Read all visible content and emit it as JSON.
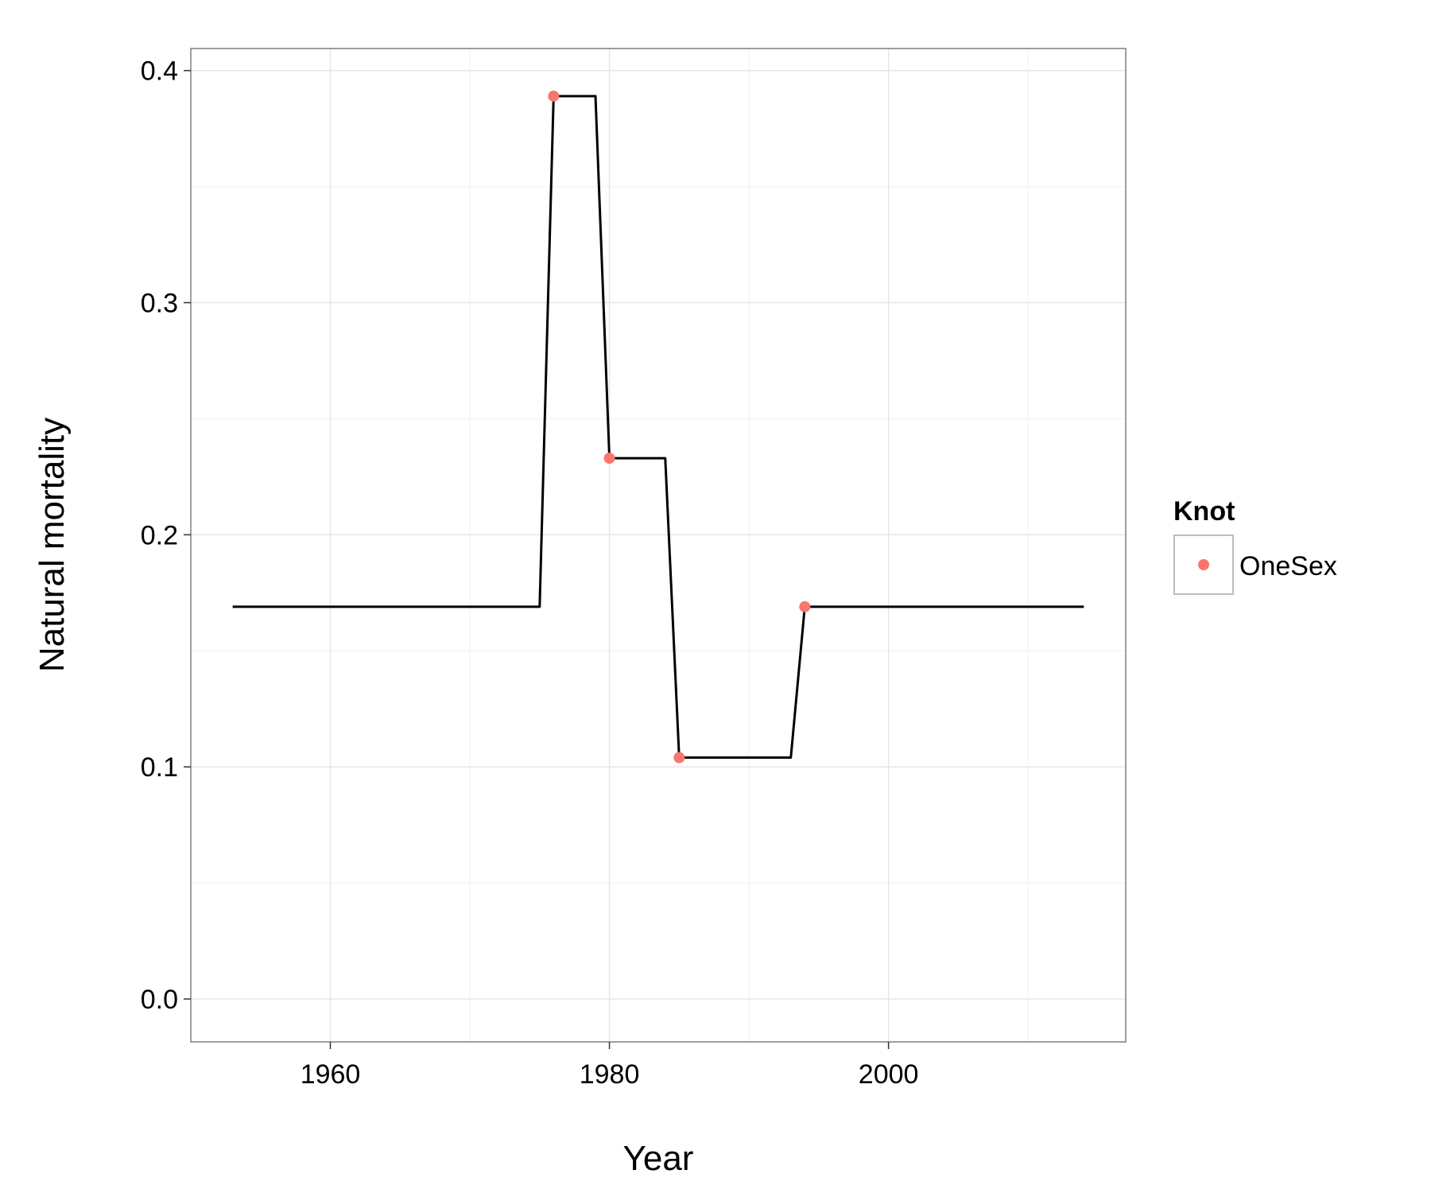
{
  "chart_data": {
    "type": "line",
    "title": "",
    "xlabel": "Year",
    "ylabel": "Natural mortality",
    "xlim": [
      1950,
      2017
    ],
    "ylim": [
      -0.0185,
      0.4095
    ],
    "x_ticks": [
      1960,
      1980,
      2000
    ],
    "x_tick_labels": [
      "1960",
      "1980",
      "2000"
    ],
    "x_minor_ticks": [
      1950,
      1970,
      1990,
      2010
    ],
    "y_ticks": [
      0.0,
      0.1,
      0.2,
      0.3,
      0.4
    ],
    "y_tick_labels": [
      "0.0",
      "0.1",
      "0.2",
      "0.3",
      "0.4"
    ],
    "y_minor_ticks": [
      0.05,
      0.15,
      0.25,
      0.35
    ],
    "grid": true,
    "legend": {
      "title": "Knot",
      "placement": "right",
      "entries": [
        "OneSex"
      ]
    },
    "series": [
      {
        "kind": "line",
        "color": "#000000",
        "x": [
          1953,
          1975,
          1976,
          1979,
          1980,
          1984,
          1985,
          1993,
          1994,
          2014
        ],
        "y": [
          0.169,
          0.169,
          0.389,
          0.389,
          0.233,
          0.233,
          0.104,
          0.104,
          0.169,
          0.169
        ]
      },
      {
        "name": "OneSex",
        "kind": "points",
        "color": "#F8766D",
        "x": [
          1976,
          1980,
          1985,
          1994
        ],
        "y": [
          0.389,
          0.233,
          0.104,
          0.169
        ]
      }
    ],
    "colors": {
      "panel_border": "#7f7f7f",
      "grid_major": "#e6e6e6",
      "grid_minor": "#f5f5f5",
      "axis_text": "#000000",
      "knot": "#F8766D"
    }
  }
}
